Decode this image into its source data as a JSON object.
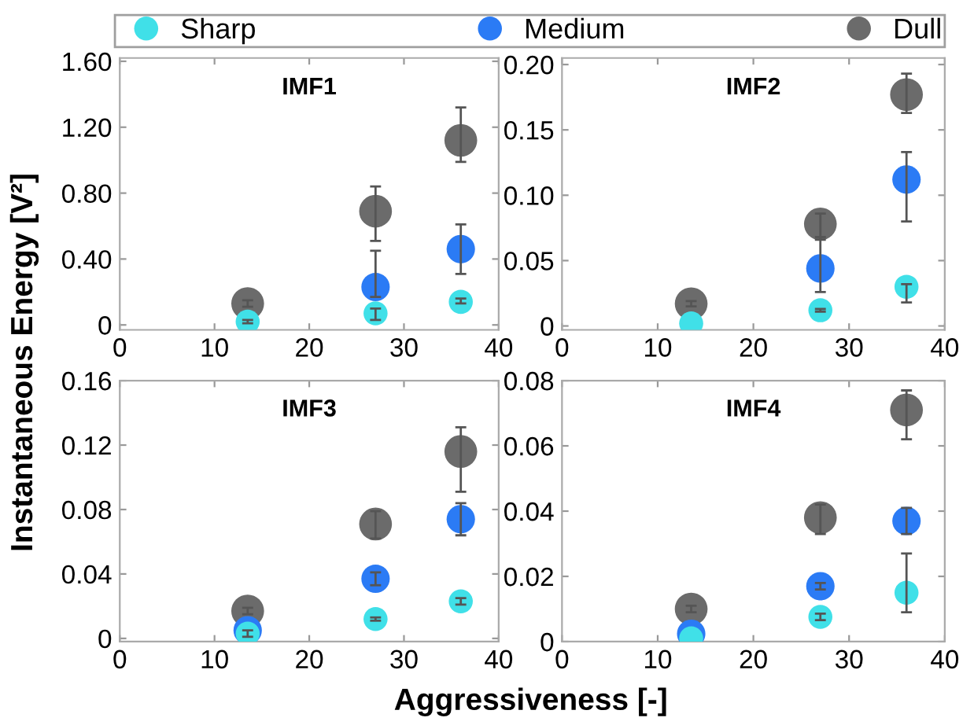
{
  "chart_data": [
    {
      "type": "scatter",
      "title": "IMF1",
      "ylabel": "Instantaneous Energy [V²]",
      "x": [
        13.5,
        27,
        36
      ],
      "xlim": [
        0,
        40
      ],
      "xticks": [
        0,
        10,
        20,
        30,
        40
      ],
      "ylim": [
        -0.03,
        1.62
      ],
      "yticks": [
        0,
        {
          "value": 0.4,
          "label": "0.40"
        },
        {
          "value": 0.8,
          "label": "0.80"
        },
        {
          "value": 1.2,
          "label": "1.20"
        },
        {
          "value": 1.6,
          "label": "1.60"
        }
      ],
      "marker": "circle",
      "legend": "top",
      "grid": false,
      "series": [
        {
          "name": "Sharp",
          "color": "#40e0e8",
          "values": [
            0.02,
            0.07,
            0.14
          ],
          "errors": [
            [
              0.01,
              0.03
            ],
            [
              0.03,
              0.1
            ],
            [
              0.13,
              0.16
            ]
          ]
        },
        {
          "name": "Medium",
          "color": "#2b7bf5",
          "values": [
            null,
            0.23,
            0.46
          ],
          "errors": [
            null,
            [
              0.17,
              0.45
            ],
            [
              0.31,
              0.61
            ]
          ]
        },
        {
          "name": "Dull",
          "color": "#6b6b6b",
          "values": [
            0.13,
            0.69,
            1.12
          ],
          "errors": [
            [
              0.11,
              0.15
            ],
            [
              0.51,
              0.84
            ],
            [
              0.99,
              1.32
            ]
          ]
        }
      ]
    },
    {
      "type": "scatter",
      "title": "IMF2",
      "x": [
        13.5,
        27,
        36
      ],
      "xlim": [
        0,
        40
      ],
      "xticks": [
        0,
        10,
        20,
        30,
        40
      ],
      "ylim": [
        -0.003,
        0.205
      ],
      "yticks": [
        0,
        0.05,
        {
          "value": 0.1,
          "label": "0.10"
        },
        0.15,
        {
          "value": 0.2,
          "label": "0.20"
        }
      ],
      "marker": "circle",
      "grid": false,
      "series": [
        {
          "color": "#40e0e8",
          "values": [
            0.002,
            0.012,
            0.03
          ],
          "errors": [
            null,
            [
              0.011,
              0.013
            ],
            [
              0.018,
              0.032
            ]
          ]
        },
        {
          "color": "#2b7bf5",
          "values": [
            null,
            0.044,
            0.112
          ],
          "errors": [
            null,
            [
              0.026,
              0.068
            ],
            [
              0.08,
              0.133
            ]
          ]
        },
        {
          "color": "#6b6b6b",
          "values": [
            0.017,
            0.078,
            0.177
          ],
          "errors": [
            [
              0.015,
              0.019
            ],
            [
              0.066,
              0.086
            ],
            [
              0.163,
              0.193
            ]
          ]
        }
      ]
    },
    {
      "type": "scatter",
      "title": "IMF3",
      "xlabel": "Aggressiveness [-]",
      "x": [
        13.5,
        27,
        36
      ],
      "xlim": [
        0,
        40
      ],
      "xticks": [
        0,
        10,
        20,
        30,
        40
      ],
      "ylim": [
        -0.002,
        0.16
      ],
      "yticks": [
        0,
        0.04,
        0.08,
        0.12,
        0.16
      ],
      "marker": "circle",
      "grid": false,
      "series": [
        {
          "color": "#40e0e8",
          "values": [
            0.003,
            0.012,
            0.023
          ],
          "errors": [
            [
              0.001,
              0.005
            ],
            [
              0.011,
              0.013
            ],
            [
              0.021,
              0.025
            ]
          ]
        },
        {
          "color": "#2b7bf5",
          "values": [
            0.005,
            0.037,
            0.074
          ],
          "errors": [
            [
              0.003,
              0.007
            ],
            [
              0.033,
              0.041
            ],
            [
              0.064,
              0.084
            ]
          ]
        },
        {
          "color": "#6b6b6b",
          "values": [
            0.017,
            0.071,
            0.116
          ],
          "errors": [
            [
              0.015,
              0.019
            ],
            [
              0.062,
              0.079
            ],
            [
              0.091,
              0.131
            ]
          ]
        }
      ]
    },
    {
      "type": "scatter",
      "title": "IMF4",
      "x": [
        13.5,
        27,
        36
      ],
      "xlim": [
        0,
        40
      ],
      "xticks": [
        0,
        10,
        20,
        30,
        40
      ],
      "ylim": [
        0,
        0.08
      ],
      "yticks": [
        0,
        0.02,
        0.04,
        0.06,
        0.08
      ],
      "marker": "circle",
      "grid": false,
      "series": [
        {
          "color": "#40e0e8",
          "values": [
            0.001,
            0.0076,
            0.015
          ],
          "errors": [
            null,
            [
              0.0066,
              0.0086
            ],
            [
              0.009,
              0.027
            ]
          ]
        },
        {
          "color": "#2b7bf5",
          "values": [
            0.0024,
            0.017,
            0.037
          ],
          "errors": [
            null,
            [
              0.016,
              0.018
            ],
            [
              0.033,
              0.041
            ]
          ]
        },
        {
          "color": "#6b6b6b",
          "values": [
            0.01,
            0.038,
            0.071
          ],
          "errors": [
            [
              0.009,
              0.011
            ],
            [
              0.033,
              0.042
            ],
            [
              0.062,
              0.077
            ]
          ]
        }
      ]
    }
  ]
}
